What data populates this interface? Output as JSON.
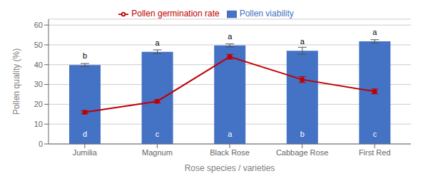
{
  "chart_data": {
    "type": "bar",
    "categories": [
      "Jumilia",
      "Magnum",
      "Black Rose",
      "Cabbage Rose",
      "First Red"
    ],
    "series": [
      {
        "name": "Pollen viability",
        "type": "bar",
        "color": "#4472C4",
        "values": [
          39.8,
          46.5,
          49.7,
          47.0,
          51.8
        ],
        "errors": [
          0.8,
          1.0,
          0.8,
          1.8,
          0.8
        ],
        "inside_labels": [
          "d",
          "c",
          "a",
          "b",
          "c"
        ],
        "top_labels": [
          "b",
          "a",
          "a",
          "a",
          "a"
        ]
      },
      {
        "name": "Pollen germination rate",
        "type": "line",
        "color": "#C00000",
        "marker": "circle",
        "values": [
          16.0,
          21.5,
          44.0,
          32.5,
          26.5
        ],
        "errors": [
          0.8,
          0.8,
          1.2,
          1.5,
          1.2
        ]
      }
    ],
    "xlabel": "Rose species / varieties",
    "ylabel": "Pollen quality (%)",
    "ylim": [
      0,
      63
    ],
    "yticks": [
      0,
      10,
      20,
      30,
      40,
      50,
      60
    ],
    "grid": true,
    "legend": "top"
  }
}
